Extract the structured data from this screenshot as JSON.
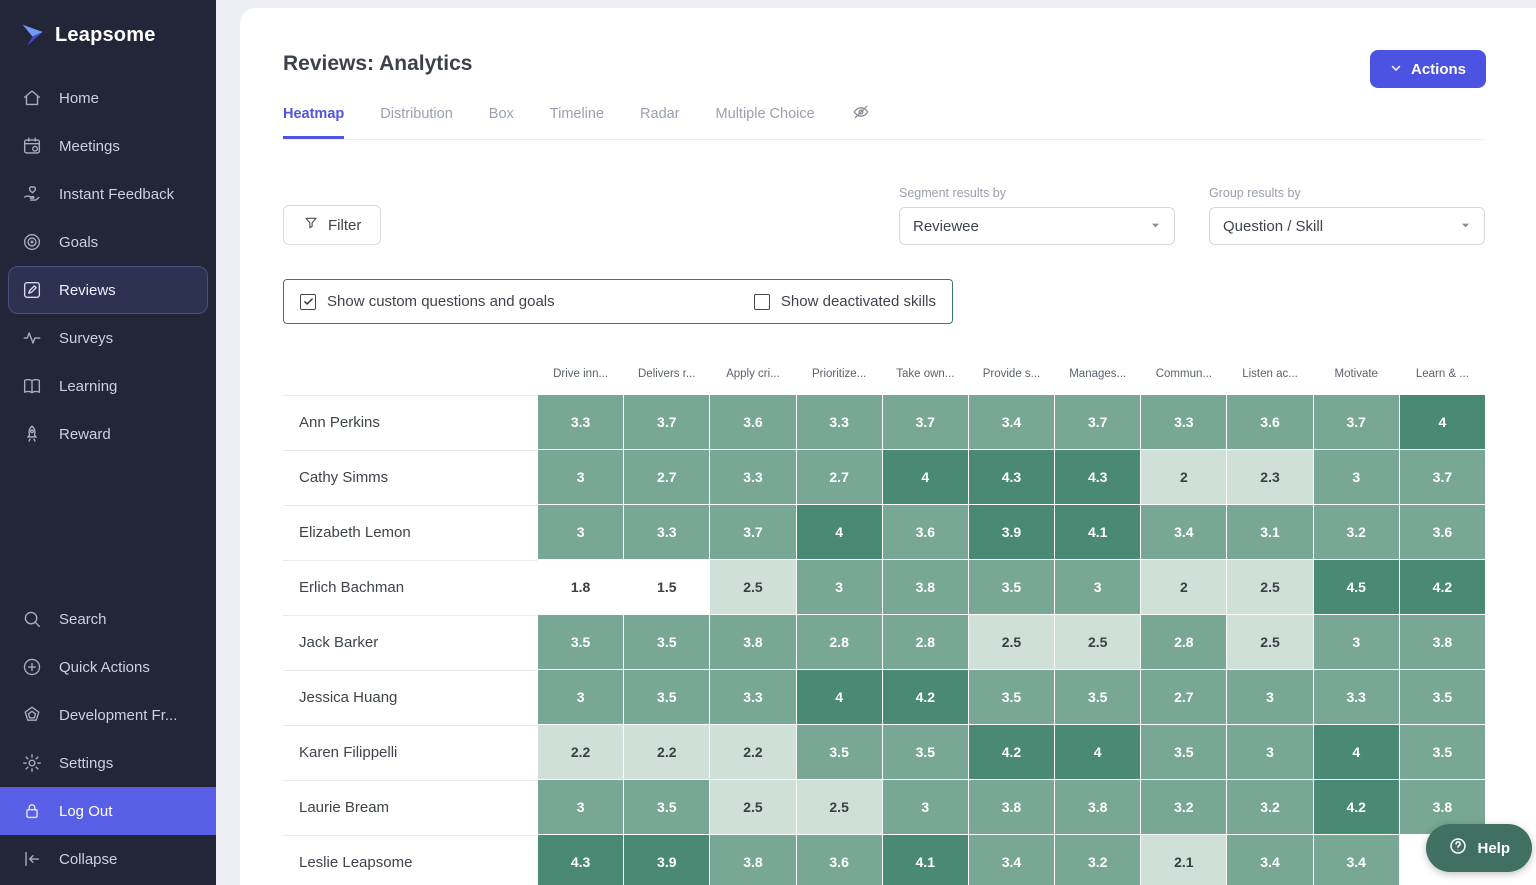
{
  "sidebar": {
    "logo_text": "Leapsome",
    "main_items": [
      {
        "label": "Home",
        "icon": "home-icon"
      },
      {
        "label": "Meetings",
        "icon": "calendar-icon"
      },
      {
        "label": "Instant Feedback",
        "icon": "feedback-icon"
      },
      {
        "label": "Goals",
        "icon": "target-icon"
      },
      {
        "label": "Reviews",
        "icon": "reviews-icon",
        "active": true
      },
      {
        "label": "Surveys",
        "icon": "pulse-icon"
      },
      {
        "label": "Learning",
        "icon": "book-icon"
      },
      {
        "label": "Reward",
        "icon": "rocket-icon"
      }
    ],
    "bottom_items": [
      {
        "label": "Search",
        "icon": "search-icon"
      },
      {
        "label": "Quick Actions",
        "icon": "plus-circle-icon"
      },
      {
        "label": "Development Fr...",
        "icon": "framework-icon"
      },
      {
        "label": "Settings",
        "icon": "gear-icon"
      },
      {
        "label": "Log Out",
        "icon": "lock-icon",
        "highlighted": true
      },
      {
        "label": "Collapse",
        "icon": "collapse-icon"
      }
    ]
  },
  "header": {
    "title": "Reviews: Analytics",
    "actions_label": "Actions",
    "tabs": [
      {
        "label": "Heatmap",
        "active": true
      },
      {
        "label": "Distribution"
      },
      {
        "label": "Box"
      },
      {
        "label": "Timeline"
      },
      {
        "label": "Radar"
      },
      {
        "label": "Multiple Choice"
      }
    ]
  },
  "controls": {
    "filter_label": "Filter",
    "segment_label": "Segment results by",
    "segment_value": "Reviewee",
    "group_label": "Group results by",
    "group_value": "Question / Skill",
    "checkbox_custom": {
      "label": "Show custom questions and goals",
      "checked": true
    },
    "checkbox_deactivated": {
      "label": "Show deactivated skills",
      "checked": false
    }
  },
  "help_label": "Help",
  "colors": {
    "sidebar_bg": "#232539",
    "accent_indigo": "#4c52e2",
    "logout_bg": "#585ee6",
    "panel_border": "#3c7c6a",
    "help_bg": "#3f7061",
    "heat_scale": [
      "#ffffff",
      "#cfe0d9",
      "#78a795",
      "#4a8974"
    ]
  },
  "chart_data": {
    "type": "heatmap",
    "title": "Reviews heatmap segmented by Reviewee, grouped by Question / Skill",
    "value_range": [
      1,
      5
    ],
    "color_thresholds": {
      "white_below": 2,
      "light_max": 2.5,
      "dark_from": 3.9
    },
    "columns": [
      "Drive inn...",
      "Delivers r...",
      "Apply cri...",
      "Prioritize...",
      "Take own...",
      "Provide s...",
      "Manages...",
      "Commun...",
      "Listen ac...",
      "Motivate",
      "Learn & ..."
    ],
    "rows": [
      {
        "name": "Ann Perkins",
        "values": [
          3.3,
          3.7,
          3.6,
          3.3,
          3.7,
          3.4,
          3.7,
          3.3,
          3.6,
          3.7,
          4
        ]
      },
      {
        "name": "Cathy Simms",
        "values": [
          3,
          2.7,
          3.3,
          2.7,
          4,
          4.3,
          4.3,
          2,
          2.3,
          3,
          3.7
        ]
      },
      {
        "name": "Elizabeth Lemon",
        "values": [
          3,
          3.3,
          3.7,
          4,
          3.6,
          3.9,
          4.1,
          3.4,
          3.1,
          3.2,
          3.6
        ]
      },
      {
        "name": "Erlich Bachman",
        "values": [
          1.8,
          1.5,
          2.5,
          3,
          3.8,
          3.5,
          3,
          2,
          2.5,
          4.5,
          4.2
        ]
      },
      {
        "name": "Jack Barker",
        "values": [
          3.5,
          3.5,
          3.8,
          2.8,
          2.8,
          2.5,
          2.5,
          2.8,
          2.5,
          3,
          3.8
        ]
      },
      {
        "name": "Jessica Huang",
        "values": [
          3,
          3.5,
          3.3,
          4,
          4.2,
          3.5,
          3.5,
          2.7,
          3,
          3.3,
          3.5
        ]
      },
      {
        "name": "Karen Filippelli",
        "values": [
          2.2,
          2.2,
          2.2,
          3.5,
          3.5,
          4.2,
          4,
          3.5,
          3,
          4,
          3.5
        ]
      },
      {
        "name": "Laurie Bream",
        "values": [
          3,
          3.5,
          2.5,
          2.5,
          3,
          3.8,
          3.8,
          3.2,
          3.2,
          4.2,
          3.8
        ]
      },
      {
        "name": "Leslie Leapsome",
        "values": [
          4.3,
          3.9,
          3.8,
          3.6,
          4.1,
          3.4,
          3.2,
          2.1,
          3.4,
          3.4,
          null
        ]
      }
    ],
    "partial_row_levels": [
      2,
      1,
      0,
      1,
      1,
      1,
      1,
      0,
      0,
      1,
      0
    ]
  }
}
